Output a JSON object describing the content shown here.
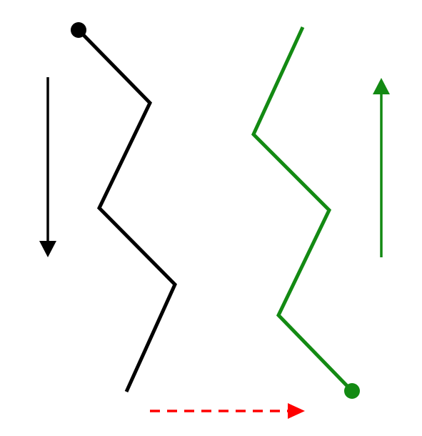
{
  "colors": {
    "background": "#ffffff",
    "black_path": "#000000",
    "green_path": "#138a13",
    "transfer_arrow": "#ff0000"
  },
  "diagram": {
    "paths": [
      {
        "name": "black-zigzag-path",
        "color": "#000000",
        "direction": "down",
        "start_marker": "dot"
      },
      {
        "name": "green-zigzag-path",
        "color": "#138a13",
        "direction": "up",
        "start_marker": "dot"
      }
    ],
    "arrows": [
      {
        "name": "black-down-arrow",
        "color": "#000000",
        "style": "solid",
        "direction": "down"
      },
      {
        "name": "green-up-arrow",
        "color": "#138a13",
        "style": "solid",
        "direction": "up"
      },
      {
        "name": "red-dashed-right-arrow",
        "color": "#ff0000",
        "style": "dashed",
        "direction": "right"
      }
    ]
  }
}
